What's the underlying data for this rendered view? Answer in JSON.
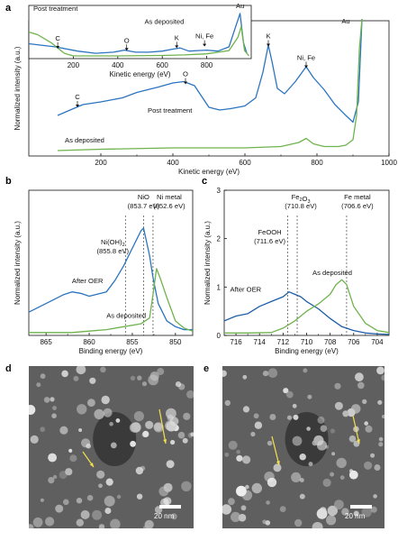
{
  "colors": {
    "blue": "#2b74c0",
    "green": "#6fb34d",
    "darkblue": "#1d5ea6"
  },
  "panel_letters": [
    "a",
    "b",
    "c",
    "d",
    "e"
  ],
  "chart_data": [
    {
      "id": "a_main",
      "type": "line",
      "xlabel": "Kinetic energy (eV)",
      "ylabel": "Normalized intensity (a.u.)",
      "xlim": [
        0,
        1000
      ],
      "xticks": [
        200,
        400,
        600,
        800,
        1000
      ],
      "ylim": [
        0,
        1
      ],
      "series": [
        {
          "name": "Post treatment",
          "color": "#2b74c0",
          "points": [
            [
              80,
              0.3
            ],
            [
              150,
              0.38
            ],
            [
              200,
              0.4
            ],
            [
              260,
              0.43
            ],
            [
              300,
              0.47
            ],
            [
              330,
              0.49
            ],
            [
              360,
              0.51
            ],
            [
              400,
              0.54
            ],
            [
              430,
              0.55
            ],
            [
              460,
              0.52
            ],
            [
              480,
              0.44
            ],
            [
              500,
              0.36
            ],
            [
              530,
              0.34
            ],
            [
              560,
              0.35
            ],
            [
              600,
              0.37
            ],
            [
              630,
              0.43
            ],
            [
              650,
              0.62
            ],
            [
              665,
              0.82
            ],
            [
              675,
              0.7
            ],
            [
              690,
              0.5
            ],
            [
              710,
              0.46
            ],
            [
              740,
              0.55
            ],
            [
              770,
              0.66
            ],
            [
              790,
              0.58
            ],
            [
              820,
              0.49
            ],
            [
              850,
              0.38
            ],
            [
              880,
              0.3
            ],
            [
              900,
              0.25
            ],
            [
              915,
              0.4
            ],
            [
              925,
              1.05
            ]
          ]
        },
        {
          "name": "As deposited",
          "color": "#6fb34d",
          "points": [
            [
              80,
              0.04
            ],
            [
              200,
              0.05
            ],
            [
              400,
              0.06
            ],
            [
              500,
              0.06
            ],
            [
              600,
              0.06
            ],
            [
              700,
              0.07
            ],
            [
              750,
              0.1
            ],
            [
              770,
              0.13
            ],
            [
              790,
              0.09
            ],
            [
              820,
              0.07
            ],
            [
              860,
              0.07
            ],
            [
              880,
              0.08
            ],
            [
              900,
              0.12
            ],
            [
              910,
              0.3
            ],
            [
              918,
              0.8
            ],
            [
              925,
              1.05
            ]
          ]
        }
      ],
      "annotations": [
        {
          "text": "C",
          "x": 135,
          "y": 0.42
        },
        {
          "text": "O",
          "x": 435,
          "y": 0.59
        },
        {
          "text": "K",
          "x": 665,
          "y": 0.87
        },
        {
          "text": "Ni, Fe",
          "x": 770,
          "y": 0.71
        },
        {
          "text": "Au",
          "x": 880,
          "y": 0.98
        }
      ],
      "series_labels": [
        {
          "text": "Post treatment",
          "x": 330,
          "y": 0.32,
          "series": 0
        },
        {
          "text": "As deposited",
          "x": 100,
          "y": 0.1,
          "series": 1
        }
      ]
    },
    {
      "id": "a_inset",
      "type": "line",
      "xlabel": "Kinetic energy (eV)",
      "xlim": [
        0,
        1000
      ],
      "xticks": [
        200,
        400,
        600,
        800
      ],
      "ylim": [
        0,
        1
      ],
      "series": [
        {
          "name": "Post treatment",
          "color": "#2b74c0",
          "points": [
            [
              0,
              0.28
            ],
            [
              120,
              0.22
            ],
            [
              220,
              0.14
            ],
            [
              300,
              0.1
            ],
            [
              380,
              0.12
            ],
            [
              430,
              0.16
            ],
            [
              480,
              0.12
            ],
            [
              540,
              0.12
            ],
            [
              600,
              0.14
            ],
            [
              650,
              0.18
            ],
            [
              680,
              0.2
            ],
            [
              720,
              0.14
            ],
            [
              760,
              0.15
            ],
            [
              800,
              0.16
            ],
            [
              850,
              0.14
            ],
            [
              900,
              0.22
            ],
            [
              930,
              0.6
            ],
            [
              950,
              0.85
            ],
            [
              965,
              0.3
            ],
            [
              980,
              0.1
            ]
          ]
        },
        {
          "name": "As deposited",
          "color": "#6fb34d",
          "points": [
            [
              0,
              0.5
            ],
            [
              40,
              0.45
            ],
            [
              100,
              0.3
            ],
            [
              160,
              0.1
            ],
            [
              200,
              0.05
            ],
            [
              400,
              0.05
            ],
            [
              600,
              0.06
            ],
            [
              700,
              0.07
            ],
            [
              800,
              0.09
            ],
            [
              900,
              0.15
            ],
            [
              940,
              0.4
            ],
            [
              955,
              0.6
            ],
            [
              970,
              0.15
            ],
            [
              990,
              0.05
            ]
          ]
        }
      ],
      "annotations": [
        {
          "text": "C",
          "x": 130,
          "y": 0.34
        },
        {
          "text": "O",
          "x": 440,
          "y": 0.3
        },
        {
          "text": "K",
          "x": 665,
          "y": 0.35
        },
        {
          "text": "Ni, Fe",
          "x": 790,
          "y": 0.38
        },
        {
          "text": "Au",
          "x": 950,
          "y": 0.95
        }
      ],
      "series_labels": [
        {
          "text": "Post treatment",
          "x": 20,
          "y": 0.9,
          "series": 0
        },
        {
          "text": "As deposited",
          "x": 520,
          "y": 0.65,
          "series": 1
        }
      ]
    },
    {
      "id": "b",
      "type": "line",
      "xlabel": "Binding energy (eV)",
      "ylabel": "Normalized intensity (a.u.)",
      "xlim": [
        867,
        848
      ],
      "xticks": [
        865,
        860,
        855,
        850
      ],
      "ylim": [
        0,
        1
      ],
      "series": [
        {
          "name": "After OER",
          "color": "#2b74c0",
          "points": [
            [
              867,
              0.16
            ],
            [
              865,
              0.22
            ],
            [
              863,
              0.28
            ],
            [
              862,
              0.3
            ],
            [
              861,
              0.29
            ],
            [
              860,
              0.27
            ],
            [
              858,
              0.3
            ],
            [
              857,
              0.38
            ],
            [
              856,
              0.48
            ],
            [
              855,
              0.6
            ],
            [
              854,
              0.72
            ],
            [
              853.7,
              0.74
            ],
            [
              853,
              0.55
            ],
            [
              852.6,
              0.4
            ],
            [
              852,
              0.22
            ],
            [
              851,
              0.1
            ],
            [
              850,
              0.06
            ],
            [
              849,
              0.04
            ],
            [
              848,
              0.04
            ]
          ]
        },
        {
          "name": "As deposited",
          "color": "#6fb34d",
          "points": [
            [
              867,
              0.02
            ],
            [
              865,
              0.02
            ],
            [
              862,
              0.02
            ],
            [
              860,
              0.03
            ],
            [
              858,
              0.04
            ],
            [
              856,
              0.06
            ],
            [
              854,
              0.08
            ],
            [
              853,
              0.12
            ],
            [
              852.6,
              0.28
            ],
            [
              852.2,
              0.46
            ],
            [
              851.8,
              0.4
            ],
            [
              851,
              0.26
            ],
            [
              850,
              0.1
            ],
            [
              849,
              0.05
            ],
            [
              848,
              0.03
            ]
          ]
        }
      ],
      "ref_lines": [
        {
          "label": "NiO\n(853.7 eV)",
          "x": 853.7
        },
        {
          "label": "Ni metal\n(852.6 eV)",
          "x": 852.6
        },
        {
          "label": "Ni(OH)2\n(855.8 eV)",
          "x": 855.8
        }
      ],
      "series_labels": [
        {
          "text": "After OER",
          "x": 862,
          "y": 0.36,
          "series": 0
        },
        {
          "text": "As deposited",
          "x": 858,
          "y": 0.12,
          "series": 1
        }
      ]
    },
    {
      "id": "c",
      "type": "line",
      "xlabel": "Binding energy (eV)",
      "ylabel": "Normalized intensity (a.u.)",
      "xlim": [
        717,
        703
      ],
      "xticks": [
        716,
        714,
        712,
        710,
        708,
        706,
        704
      ],
      "ylim": [
        0,
        3
      ],
      "yticks": [
        0,
        1,
        2,
        3
      ],
      "series": [
        {
          "name": "After OER",
          "color": "#1d5ea6",
          "points": [
            [
              717,
              0.3
            ],
            [
              716,
              0.4
            ],
            [
              715,
              0.45
            ],
            [
              714,
              0.6
            ],
            [
              713,
              0.7
            ],
            [
              712,
              0.8
            ],
            [
              711.5,
              0.9
            ],
            [
              711,
              0.85
            ],
            [
              710.5,
              0.8
            ],
            [
              710,
              0.7
            ],
            [
              709,
              0.55
            ],
            [
              708,
              0.35
            ],
            [
              707,
              0.18
            ],
            [
              706,
              0.1
            ],
            [
              705,
              0.05
            ],
            [
              704,
              0.03
            ],
            [
              703,
              0.02
            ]
          ]
        },
        {
          "name": "As deposited",
          "color": "#6fb34d",
          "points": [
            [
              717,
              0.05
            ],
            [
              715,
              0.05
            ],
            [
              713,
              0.06
            ],
            [
              712,
              0.15
            ],
            [
              711,
              0.3
            ],
            [
              710,
              0.5
            ],
            [
              709,
              0.65
            ],
            [
              708,
              0.85
            ],
            [
              707.5,
              1.05
            ],
            [
              707,
              1.15
            ],
            [
              706.6,
              1.05
            ],
            [
              706,
              0.6
            ],
            [
              705,
              0.25
            ],
            [
              704,
              0.1
            ],
            [
              703,
              0.06
            ]
          ]
        }
      ],
      "ref_lines": [
        {
          "label": "FeOOH\n(711.6 eV)",
          "x": 711.6
        },
        {
          "label": "Fe2O3\n(710.8 eV)",
          "x": 710.8
        },
        {
          "label": "Fe metal\n(706.6 eV)",
          "x": 706.6
        }
      ],
      "series_labels": [
        {
          "text": "After OER",
          "x": 716.5,
          "y": 0.9,
          "series": 0
        },
        {
          "text": "As deposited",
          "x": 709.5,
          "y": 1.25,
          "series": 1
        }
      ]
    }
  ],
  "sem_images": [
    {
      "id": "d",
      "scale_text": "20 nm"
    },
    {
      "id": "e",
      "scale_text": "20 nm"
    }
  ]
}
